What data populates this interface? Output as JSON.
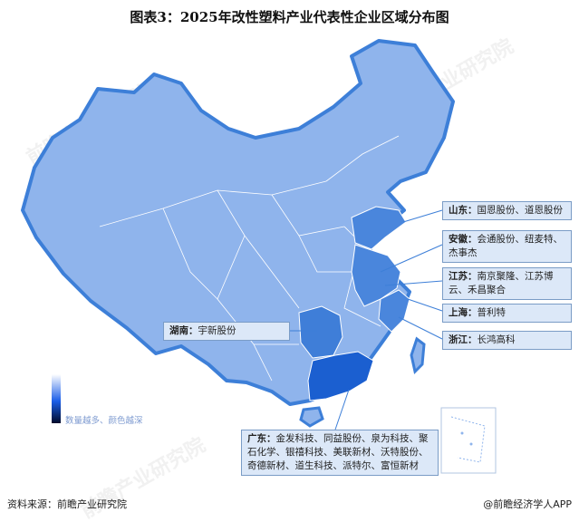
{
  "title": "图表3：2025年改性塑料产业代表性企业区域分布图",
  "legend": {
    "text": "数量越多、颜色越深",
    "colors": [
      "#ffffff",
      "#1a5ee8",
      "#000a2a"
    ]
  },
  "colors": {
    "base": "#8fb4ec",
    "border": "#3d7fd8",
    "medium": "#4a86dc",
    "dark": "#1b5fd0"
  },
  "regions": [
    {
      "name": "山东",
      "companies": "国恩股份、道恩股份"
    },
    {
      "name": "安徽",
      "companies": "会通股份、纽麦特、杰事杰"
    },
    {
      "name": "江苏",
      "companies": "南京聚隆、江苏博云、禾昌聚合"
    },
    {
      "name": "上海",
      "companies": "普利特"
    },
    {
      "name": "浙江",
      "companies": "长鸿高科"
    },
    {
      "name": "湖南",
      "companies": "宇新股份"
    },
    {
      "name": "广东",
      "companies": "金发科技、同益股份、泉为科技、聚石化学、银禧科技、美联新材、沃特股份、奇德新材、道生科技、派特尔、富恒新材"
    }
  ],
  "separator": "：",
  "watermark": "前瞻产业研究院",
  "footer": {
    "source": "资料来源：前瞻产业研究院",
    "credit": "@前瞻经济学人APP"
  }
}
